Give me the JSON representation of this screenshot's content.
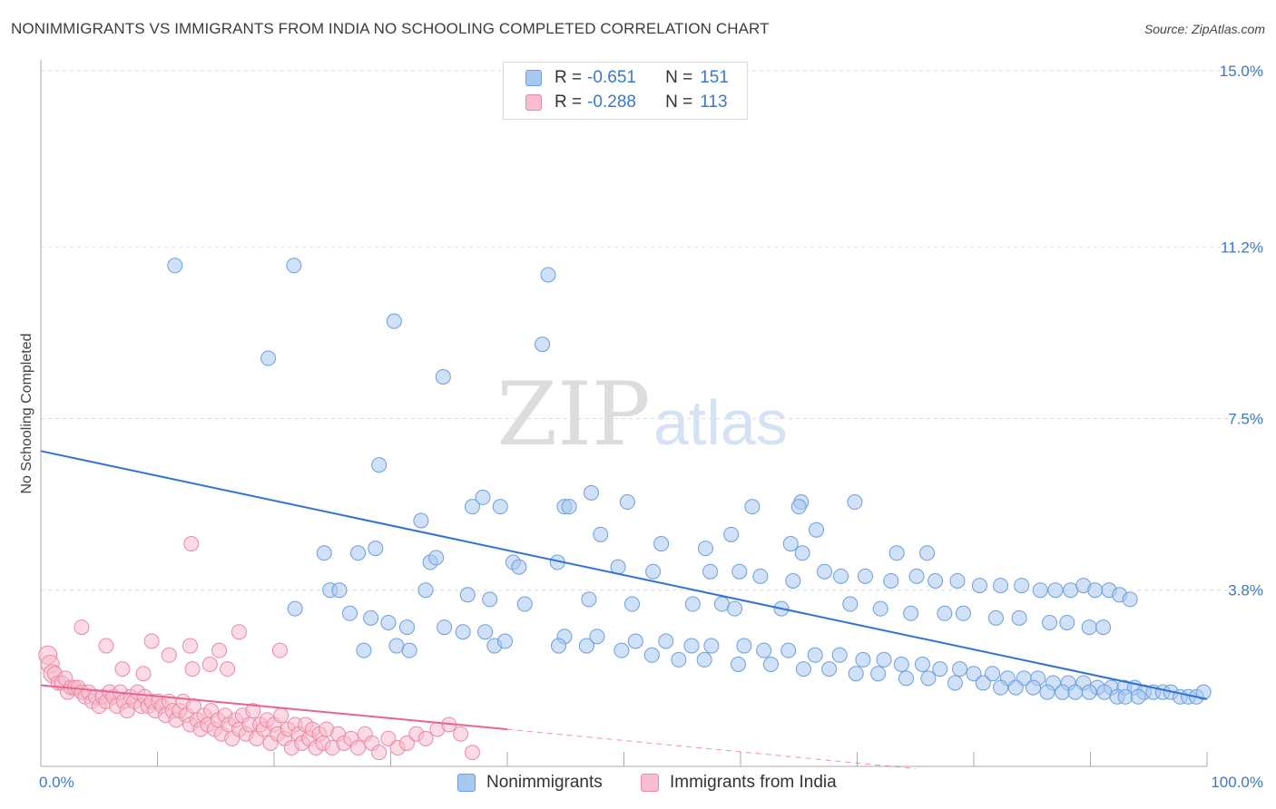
{
  "title": "NONIMMIGRANTS VS IMMIGRANTS FROM INDIA NO SCHOOLING COMPLETED CORRELATION CHART",
  "source": "Source: ZipAtlas.com",
  "watermark": {
    "zip": "ZIP",
    "atlas": "atlas"
  },
  "legend": {
    "rows": [
      {
        "r_label": "R =",
        "r_value": "-0.651",
        "n_label": "N =",
        "n_value": "151",
        "color": "#a9c8f0",
        "stroke": "#6b9edd"
      },
      {
        "r_label": "R =",
        "r_value": "-0.288",
        "n_label": "N =",
        "n_value": "113",
        "color": "#f7bccd",
        "stroke": "#e88aa7"
      }
    ]
  },
  "bottom_legend": [
    "Nonimmigrants",
    "Immigrants from India"
  ],
  "chart_data": {
    "type": "scatter",
    "ylabel": "No Schooling Completed",
    "xlim": [
      0,
      100
    ],
    "ylim": [
      0,
      15
    ],
    "x_tick_labels": [
      "0.0%",
      "100.0%"
    ],
    "y_ticks": [
      3.8,
      7.5,
      11.2,
      15.0
    ],
    "y_tick_labels": [
      "3.8%",
      "7.5%",
      "11.2%",
      "15.0%"
    ],
    "grid": true,
    "colors": {
      "blue_fill": "#a9c8f0",
      "blue_stroke": "#6b9edd",
      "blue_line": "#2f73d0",
      "pink_fill": "#f7bccd",
      "pink_stroke": "#e88aa7",
      "pink_line": "#e8648c"
    },
    "series": [
      {
        "name": "Nonimmigrants",
        "trend": {
          "x": [
            0,
            100
          ],
          "y": [
            6.8,
            1.45
          ]
        },
        "points": [
          [
            11.5,
            10.8
          ],
          [
            21.7,
            10.8
          ],
          [
            43.5,
            10.6
          ],
          [
            30.3,
            9.6
          ],
          [
            43.0,
            9.1
          ],
          [
            19.5,
            8.8
          ],
          [
            34.5,
            8.4
          ],
          [
            29.0,
            6.5
          ],
          [
            47.2,
            5.9
          ],
          [
            37.9,
            5.8
          ],
          [
            50.3,
            5.7
          ],
          [
            65.2,
            5.7
          ],
          [
            69.8,
            5.7
          ],
          [
            37.0,
            5.6
          ],
          [
            39.4,
            5.6
          ],
          [
            44.9,
            5.6
          ],
          [
            45.3,
            5.6
          ],
          [
            61.0,
            5.6
          ],
          [
            65.0,
            5.6
          ],
          [
            32.6,
            5.3
          ],
          [
            66.5,
            5.1
          ],
          [
            48.0,
            5.0
          ],
          [
            59.2,
            5.0
          ],
          [
            28.7,
            4.7
          ],
          [
            53.2,
            4.8
          ],
          [
            64.3,
            4.8
          ],
          [
            57.0,
            4.7
          ],
          [
            65.3,
            4.6
          ],
          [
            76.0,
            4.6
          ],
          [
            73.4,
            4.6
          ],
          [
            24.3,
            4.6
          ],
          [
            27.2,
            4.6
          ],
          [
            33.4,
            4.4
          ],
          [
            33.9,
            4.5
          ],
          [
            40.5,
            4.4
          ],
          [
            41.0,
            4.3
          ],
          [
            44.3,
            4.4
          ],
          [
            49.5,
            4.3
          ],
          [
            52.5,
            4.2
          ],
          [
            57.4,
            4.2
          ],
          [
            59.9,
            4.2
          ],
          [
            61.7,
            4.1
          ],
          [
            64.5,
            4.0
          ],
          [
            67.2,
            4.2
          ],
          [
            68.6,
            4.1
          ],
          [
            70.7,
            4.1
          ],
          [
            72.9,
            4.0
          ],
          [
            75.1,
            4.1
          ],
          [
            76.7,
            4.0
          ],
          [
            78.6,
            4.0
          ],
          [
            80.5,
            3.9
          ],
          [
            82.3,
            3.9
          ],
          [
            84.1,
            3.9
          ],
          [
            85.7,
            3.8
          ],
          [
            87.0,
            3.8
          ],
          [
            88.3,
            3.8
          ],
          [
            89.4,
            3.9
          ],
          [
            90.4,
            3.8
          ],
          [
            91.6,
            3.8
          ],
          [
            92.5,
            3.7
          ],
          [
            93.4,
            3.6
          ],
          [
            24.8,
            3.8
          ],
          [
            25.6,
            3.8
          ],
          [
            33.0,
            3.8
          ],
          [
            36.6,
            3.7
          ],
          [
            38.5,
            3.6
          ],
          [
            41.5,
            3.5
          ],
          [
            47.0,
            3.6
          ],
          [
            50.7,
            3.5
          ],
          [
            55.9,
            3.5
          ],
          [
            58.4,
            3.5
          ],
          [
            59.5,
            3.4
          ],
          [
            63.5,
            3.4
          ],
          [
            69.4,
            3.5
          ],
          [
            72.0,
            3.4
          ],
          [
            74.6,
            3.3
          ],
          [
            77.5,
            3.3
          ],
          [
            79.1,
            3.3
          ],
          [
            81.9,
            3.2
          ],
          [
            83.9,
            3.2
          ],
          [
            86.5,
            3.1
          ],
          [
            88.0,
            3.1
          ],
          [
            89.9,
            3.0
          ],
          [
            91.1,
            3.0
          ],
          [
            21.8,
            3.4
          ],
          [
            26.5,
            3.3
          ],
          [
            28.3,
            3.2
          ],
          [
            29.8,
            3.1
          ],
          [
            31.4,
            3.0
          ],
          [
            34.6,
            3.0
          ],
          [
            36.2,
            2.9
          ],
          [
            38.1,
            2.9
          ],
          [
            44.9,
            2.8
          ],
          [
            47.7,
            2.8
          ],
          [
            51.0,
            2.7
          ],
          [
            53.6,
            2.7
          ],
          [
            55.8,
            2.6
          ],
          [
            57.5,
            2.6
          ],
          [
            60.3,
            2.6
          ],
          [
            62.0,
            2.5
          ],
          [
            64.1,
            2.5
          ],
          [
            66.4,
            2.4
          ],
          [
            68.5,
            2.4
          ],
          [
            70.5,
            2.3
          ],
          [
            72.3,
            2.3
          ],
          [
            73.8,
            2.2
          ],
          [
            75.6,
            2.2
          ],
          [
            77.1,
            2.1
          ],
          [
            78.8,
            2.1
          ],
          [
            80.0,
            2.0
          ],
          [
            81.6,
            2.0
          ],
          [
            82.9,
            1.9
          ],
          [
            84.3,
            1.9
          ],
          [
            85.5,
            1.9
          ],
          [
            86.8,
            1.8
          ],
          [
            88.1,
            1.8
          ],
          [
            89.4,
            1.8
          ],
          [
            90.6,
            1.7
          ],
          [
            91.8,
            1.7
          ],
          [
            92.9,
            1.7
          ],
          [
            93.8,
            1.7
          ],
          [
            94.6,
            1.6
          ],
          [
            95.4,
            1.6
          ],
          [
            96.2,
            1.6
          ],
          [
            96.9,
            1.6
          ],
          [
            97.7,
            1.5
          ],
          [
            98.4,
            1.5
          ],
          [
            99.1,
            1.5
          ],
          [
            99.7,
            1.6
          ],
          [
            27.7,
            2.5
          ],
          [
            30.5,
            2.6
          ],
          [
            31.6,
            2.5
          ],
          [
            38.9,
            2.6
          ],
          [
            39.8,
            2.7
          ],
          [
            44.4,
            2.6
          ],
          [
            46.8,
            2.6
          ],
          [
            49.8,
            2.5
          ],
          [
            52.4,
            2.4
          ],
          [
            54.7,
            2.3
          ],
          [
            56.9,
            2.3
          ],
          [
            59.8,
            2.2
          ],
          [
            62.6,
            2.2
          ],
          [
            65.4,
            2.1
          ],
          [
            67.6,
            2.1
          ],
          [
            69.9,
            2.0
          ],
          [
            71.8,
            2.0
          ],
          [
            74.2,
            1.9
          ],
          [
            76.1,
            1.9
          ],
          [
            78.4,
            1.8
          ],
          [
            80.8,
            1.8
          ],
          [
            82.3,
            1.7
          ],
          [
            83.6,
            1.7
          ],
          [
            85.1,
            1.7
          ],
          [
            86.3,
            1.6
          ],
          [
            87.6,
            1.6
          ],
          [
            88.7,
            1.6
          ],
          [
            89.9,
            1.6
          ],
          [
            91.2,
            1.6
          ],
          [
            92.3,
            1.5
          ],
          [
            93.0,
            1.5
          ],
          [
            94.1,
            1.5
          ]
        ]
      },
      {
        "name": "Immigrants from India",
        "trend": {
          "x": [
            0,
            40
          ],
          "y": [
            1.75,
            0.8
          ]
        },
        "trend_dashed": {
          "x": [
            40,
            75
          ],
          "y": [
            0.8,
            -0.05
          ]
        },
        "points": [
          [
            0.6,
            2.4
          ],
          [
            0.8,
            2.2
          ],
          [
            1.0,
            2.0
          ],
          [
            1.2,
            2.0
          ],
          [
            1.5,
            1.8
          ],
          [
            1.8,
            1.8
          ],
          [
            2.1,
            1.9
          ],
          [
            2.3,
            1.6
          ],
          [
            2.6,
            1.7
          ],
          [
            2.9,
            1.7
          ],
          [
            3.2,
            1.7
          ],
          [
            3.5,
            1.6
          ],
          [
            3.8,
            1.5
          ],
          [
            4.1,
            1.6
          ],
          [
            4.4,
            1.4
          ],
          [
            4.7,
            1.5
          ],
          [
            5.0,
            1.3
          ],
          [
            5.3,
            1.5
          ],
          [
            5.6,
            1.4
          ],
          [
            5.9,
            1.6
          ],
          [
            6.2,
            1.5
          ],
          [
            6.5,
            1.3
          ],
          [
            6.8,
            1.6
          ],
          [
            7.1,
            1.4
          ],
          [
            7.4,
            1.2
          ],
          [
            7.7,
            1.5
          ],
          [
            8.0,
            1.4
          ],
          [
            8.3,
            1.6
          ],
          [
            8.6,
            1.3
          ],
          [
            8.9,
            1.5
          ],
          [
            9.2,
            1.3
          ],
          [
            9.5,
            1.4
          ],
          [
            9.8,
            1.2
          ],
          [
            10.1,
            1.4
          ],
          [
            10.4,
            1.3
          ],
          [
            10.7,
            1.1
          ],
          [
            11.0,
            1.4
          ],
          [
            11.3,
            1.2
          ],
          [
            11.6,
            1.0
          ],
          [
            11.9,
            1.2
          ],
          [
            12.2,
            1.4
          ],
          [
            12.5,
            1.1
          ],
          [
            12.8,
            0.9
          ],
          [
            13.1,
            1.3
          ],
          [
            13.4,
            1.0
          ],
          [
            13.7,
            0.8
          ],
          [
            14.0,
            1.1
          ],
          [
            14.3,
            0.9
          ],
          [
            14.6,
            1.2
          ],
          [
            14.9,
            0.8
          ],
          [
            15.2,
            1.0
          ],
          [
            15.5,
            0.7
          ],
          [
            15.8,
            1.1
          ],
          [
            16.1,
            0.9
          ],
          [
            16.4,
            0.6
          ],
          [
            16.7,
            1.0
          ],
          [
            17.0,
            0.8
          ],
          [
            17.3,
            1.1
          ],
          [
            17.6,
            0.7
          ],
          [
            17.9,
            0.9
          ],
          [
            18.2,
            1.2
          ],
          [
            18.5,
            0.6
          ],
          [
            18.8,
            0.9
          ],
          [
            19.1,
            0.8
          ],
          [
            19.4,
            1.0
          ],
          [
            19.7,
            0.5
          ],
          [
            20.0,
            0.9
          ],
          [
            20.3,
            0.7
          ],
          [
            20.6,
            1.1
          ],
          [
            20.9,
            0.6
          ],
          [
            21.2,
            0.8
          ],
          [
            21.5,
            0.4
          ],
          [
            21.8,
            0.9
          ],
          [
            22.1,
            0.7
          ],
          [
            22.4,
            0.5
          ],
          [
            22.7,
            0.9
          ],
          [
            23.0,
            0.6
          ],
          [
            23.3,
            0.8
          ],
          [
            23.6,
            0.4
          ],
          [
            23.9,
            0.7
          ],
          [
            24.2,
            0.5
          ],
          [
            24.5,
            0.8
          ],
          [
            25.0,
            0.4
          ],
          [
            25.5,
            0.7
          ],
          [
            26.0,
            0.5
          ],
          [
            26.6,
            0.6
          ],
          [
            27.2,
            0.4
          ],
          [
            27.8,
            0.7
          ],
          [
            28.4,
            0.5
          ],
          [
            29.0,
            0.3
          ],
          [
            29.8,
            0.6
          ],
          [
            30.6,
            0.4
          ],
          [
            31.4,
            0.5
          ],
          [
            32.2,
            0.7
          ],
          [
            33.0,
            0.6
          ],
          [
            34.0,
            0.8
          ],
          [
            35.0,
            0.9
          ],
          [
            36.0,
            0.7
          ],
          [
            37.0,
            0.3
          ],
          [
            12.9,
            4.8
          ],
          [
            3.5,
            3.0
          ],
          [
            5.6,
            2.6
          ],
          [
            9.5,
            2.7
          ],
          [
            12.8,
            2.6
          ],
          [
            17.0,
            2.9
          ],
          [
            15.3,
            2.5
          ],
          [
            20.5,
            2.5
          ],
          [
            8.8,
            2.0
          ],
          [
            13.0,
            2.1
          ],
          [
            16.0,
            2.1
          ],
          [
            11.0,
            2.4
          ],
          [
            7.0,
            2.1
          ],
          [
            14.5,
            2.2
          ]
        ]
      }
    ]
  }
}
